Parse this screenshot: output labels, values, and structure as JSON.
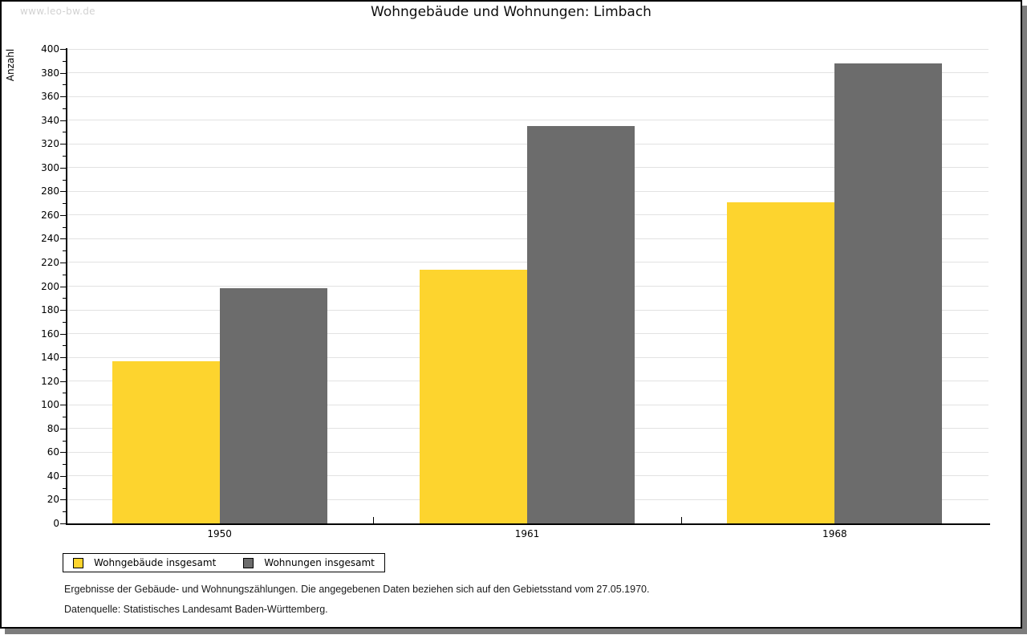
{
  "watermark": "www.leo-bw.de",
  "chart_data": {
    "type": "bar",
    "title": "Wohngebäude und Wohnungen: Limbach",
    "xlabel": "",
    "ylabel": "Anzahl",
    "categories": [
      "1950",
      "1961",
      "1968"
    ],
    "series": [
      {
        "name": "Wohngebäude insgesamt",
        "color": "#FDD42E",
        "values": [
          137,
          214,
          271
        ]
      },
      {
        "name": "Wohnungen insgesamt",
        "color": "#6C6C6C",
        "values": [
          198,
          335,
          388
        ]
      }
    ],
    "ylim": [
      0,
      400
    ],
    "ytick_step": 20,
    "yminor_step": 10,
    "grid": true,
    "legend_position": "bottom-left",
    "colors": {
      "bar_yellow": "#FDD42E",
      "bar_gray": "#6C6C6C",
      "gridline": "#e2e2e2",
      "axis": "#000000",
      "watermark_text": "#d2d2d2",
      "frame_shadow": "#7c7c7c"
    }
  },
  "footer": {
    "line1": "Ergebnisse der Gebäude- und Wohnungszählungen. Die angegebenen Daten beziehen sich auf den Gebietsstand vom 27.05.1970.",
    "line2": "Datenquelle: Statistisches Landesamt Baden-Württemberg."
  }
}
